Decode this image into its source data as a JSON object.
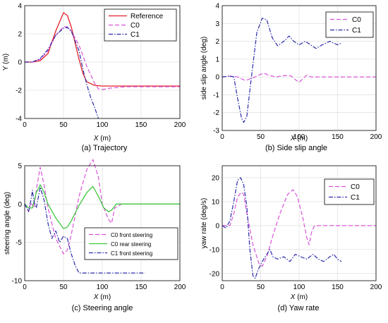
{
  "colors": {
    "reference": "#e0202a",
    "c0": "#d855d8",
    "c1": "#2a2aa8",
    "c0_rear": "#3ec83e"
  },
  "chart_data": [
    {
      "type": "line",
      "caption": "(a) Trajectory",
      "xlabel": "X",
      "xunit": "(m)",
      "ylabel": "Y (m)",
      "xlim": [
        0,
        200
      ],
      "ylim": [
        -4,
        4
      ],
      "xticks": [
        "0",
        "50",
        "100",
        "150",
        "200"
      ],
      "yticks": [
        "-4",
        "-2",
        "0",
        "2",
        "4"
      ],
      "legend_position": "top-right",
      "series": [
        {
          "name": "Reference",
          "points": [
            [
              0,
              0
            ],
            [
              10,
              0
            ],
            [
              20,
              0.1
            ],
            [
              30,
              0.6
            ],
            [
              40,
              2.2
            ],
            [
              50,
              3.5
            ],
            [
              55,
              3.3
            ],
            [
              60,
              2.5
            ],
            [
              70,
              0.2
            ],
            [
              75,
              -0.8
            ],
            [
              80,
              -1.4
            ],
            [
              90,
              -1.65
            ],
            [
              100,
              -1.7
            ],
            [
              150,
              -1.7
            ],
            [
              200,
              -1.7
            ]
          ]
        },
        {
          "name": "C0",
          "points": [
            [
              0,
              0
            ],
            [
              10,
              0
            ],
            [
              20,
              0.2
            ],
            [
              30,
              0.8
            ],
            [
              40,
              1.9
            ],
            [
              50,
              2.5
            ],
            [
              55,
              2.5
            ],
            [
              60,
              2.2
            ],
            [
              70,
              1.2
            ],
            [
              80,
              -0.3
            ],
            [
              90,
              -1.5
            ],
            [
              95,
              -1.9
            ],
            [
              100,
              -1.95
            ],
            [
              110,
              -1.85
            ],
            [
              130,
              -1.75
            ],
            [
              200,
              -1.75
            ]
          ]
        },
        {
          "name": "C1",
          "points": [
            [
              0,
              0
            ],
            [
              10,
              0
            ],
            [
              20,
              0.25
            ],
            [
              30,
              0.9
            ],
            [
              40,
              1.9
            ],
            [
              50,
              2.4
            ],
            [
              55,
              2.45
            ],
            [
              60,
              2.2
            ],
            [
              70,
              0.8
            ],
            [
              75,
              -0.5
            ],
            [
              80,
              -1.6
            ],
            [
              85,
              -2.5
            ],
            [
              90,
              -3.2
            ],
            [
              95,
              -4.0
            ]
          ]
        }
      ]
    },
    {
      "type": "line",
      "caption": "(b) Side slip angle",
      "xlabel": "X",
      "xunit": "(m)",
      "ylabel": "side slip angle (deg)",
      "xlim": [
        0,
        200
      ],
      "ylim": [
        -3,
        4
      ],
      "xticks": [
        "0",
        "50",
        "100",
        "150",
        "200"
      ],
      "yticks": [
        "-3",
        "-2",
        "-1",
        "0",
        "1",
        "2",
        "3",
        "4"
      ],
      "legend_position": "top-right",
      "series": [
        {
          "name": "C0",
          "points": [
            [
              0,
              0
            ],
            [
              10,
              0.05
            ],
            [
              20,
              0
            ],
            [
              25,
              -0.1
            ],
            [
              30,
              -0.2
            ],
            [
              40,
              -0.05
            ],
            [
              50,
              0.15
            ],
            [
              55,
              0.2
            ],
            [
              60,
              0.1
            ],
            [
              70,
              0
            ],
            [
              85,
              0.1
            ],
            [
              90,
              0.05
            ],
            [
              95,
              -0.15
            ],
            [
              100,
              -0.3
            ],
            [
              105,
              -0.1
            ],
            [
              110,
              0.1
            ],
            [
              115,
              0
            ],
            [
              130,
              0
            ],
            [
              200,
              0
            ]
          ]
        },
        {
          "name": "C1",
          "points": [
            [
              0,
              0
            ],
            [
              10,
              0.05
            ],
            [
              15,
              0
            ],
            [
              20,
              -1.2
            ],
            [
              25,
              -2.3
            ],
            [
              28,
              -2.55
            ],
            [
              32,
              -2.2
            ],
            [
              38,
              0
            ],
            [
              45,
              2.5
            ],
            [
              52,
              3.3
            ],
            [
              58,
              3.2
            ],
            [
              65,
              2.2
            ],
            [
              72,
              1.75
            ],
            [
              80,
              2.0
            ],
            [
              87,
              2.3
            ],
            [
              93,
              2.0
            ],
            [
              100,
              1.8
            ],
            [
              108,
              2.0
            ],
            [
              115,
              1.8
            ],
            [
              122,
              1.6
            ],
            [
              130,
              1.8
            ],
            [
              140,
              2.0
            ],
            [
              150,
              1.8
            ],
            [
              155,
              1.9
            ]
          ]
        }
      ]
    },
    {
      "type": "line",
      "caption": "(c) Steering angle",
      "xlabel": "X",
      "xunit": "(m)",
      "ylabel": "steering angle (deg)",
      "xlim": [
        0,
        200
      ],
      "ylim": [
        -10,
        5
      ],
      "xticks": [
        "0",
        "50",
        "100",
        "150",
        "200"
      ],
      "yticks": [
        "-10",
        "-5",
        "0",
        "5"
      ],
      "legend_position": "bottom-right",
      "series": [
        {
          "name": "C0 front steering",
          "points": [
            [
              0,
              0
            ],
            [
              5,
              -1
            ],
            [
              8,
              0.2
            ],
            [
              12,
              -0.5
            ],
            [
              16,
              2.5
            ],
            [
              20,
              4.8
            ],
            [
              25,
              2.5
            ],
            [
              30,
              -0.5
            ],
            [
              40,
              -4.5
            ],
            [
              50,
              -6.5
            ],
            [
              55,
              -6.0
            ],
            [
              60,
              -4.0
            ],
            [
              70,
              1.0
            ],
            [
              80,
              4.5
            ],
            [
              88,
              5.8
            ],
            [
              95,
              3.5
            ],
            [
              100,
              0
            ],
            [
              108,
              -2.0
            ],
            [
              112,
              -2.5
            ],
            [
              116,
              -0.5
            ],
            [
              125,
              0
            ],
            [
              200,
              0
            ]
          ]
        },
        {
          "name": "C0 rear steering",
          "points": [
            [
              0,
              0
            ],
            [
              5,
              -0.5
            ],
            [
              10,
              -0.5
            ],
            [
              15,
              1.5
            ],
            [
              20,
              2.5
            ],
            [
              25,
              1.5
            ],
            [
              30,
              0
            ],
            [
              40,
              -1.8
            ],
            [
              50,
              -3.2
            ],
            [
              55,
              -3.0
            ],
            [
              60,
              -2.2
            ],
            [
              70,
              -0.2
            ],
            [
              80,
              1.5
            ],
            [
              88,
              2.3
            ],
            [
              95,
              1.0
            ],
            [
              102,
              -0.5
            ],
            [
              108,
              -1.0
            ],
            [
              112,
              -0.8
            ],
            [
              118,
              0
            ],
            [
              200,
              0
            ]
          ]
        },
        {
          "name": "C1 front steering",
          "points": [
            [
              0,
              0
            ],
            [
              5,
              -1.0
            ],
            [
              8,
              0.5
            ],
            [
              10,
              1.8
            ],
            [
              12,
              0.3
            ],
            [
              15,
              -0.5
            ],
            [
              20,
              2.2
            ],
            [
              25,
              0.5
            ],
            [
              30,
              -2.5
            ],
            [
              35,
              -4.5
            ],
            [
              40,
              -3.5
            ],
            [
              45,
              -5.0
            ],
            [
              50,
              -4.2
            ],
            [
              55,
              -4.5
            ],
            [
              60,
              -6.5
            ],
            [
              65,
              -8.0
            ],
            [
              70,
              -9.0
            ],
            [
              80,
              -9.0
            ],
            [
              155,
              -9.0
            ]
          ]
        }
      ]
    },
    {
      "type": "line",
      "caption": "(d) Yaw rate",
      "xlabel": "X",
      "xunit": "(m)",
      "ylabel": "yaw rate (deg/s)",
      "xlim": [
        0,
        200
      ],
      "ylim": [
        -23,
        25
      ],
      "xticks": [
        "0",
        "50",
        "100",
        "150",
        "200"
      ],
      "yticks": [
        "-20",
        "-10",
        "0",
        "10",
        "20"
      ],
      "legend_position": "top-right",
      "series": [
        {
          "name": "C0",
          "points": [
            [
              0,
              0
            ],
            [
              5,
              0
            ],
            [
              10,
              0
            ],
            [
              15,
              5
            ],
            [
              20,
              12
            ],
            [
              25,
              14
            ],
            [
              28,
              13
            ],
            [
              32,
              5
            ],
            [
              40,
              -8
            ],
            [
              48,
              -16
            ],
            [
              52,
              -17
            ],
            [
              58,
              -13
            ],
            [
              65,
              -5
            ],
            [
              75,
              5
            ],
            [
              85,
              13
            ],
            [
              92,
              15
            ],
            [
              98,
              12
            ],
            [
              105,
              3
            ],
            [
              110,
              -5
            ],
            [
              113,
              -8
            ],
            [
              116,
              -3
            ],
            [
              120,
              0
            ],
            [
              200,
              0
            ]
          ]
        },
        {
          "name": "C1",
          "points": [
            [
              0,
              0
            ],
            [
              5,
              -1
            ],
            [
              10,
              2
            ],
            [
              15,
              10
            ],
            [
              20,
              19
            ],
            [
              24,
              20
            ],
            [
              28,
              17
            ],
            [
              32,
              8
            ],
            [
              36,
              -10
            ],
            [
              40,
              -21
            ],
            [
              43,
              -22
            ],
            [
              46,
              -19
            ],
            [
              52,
              -15
            ],
            [
              58,
              -12
            ],
            [
              62,
              -10
            ],
            [
              66,
              -13
            ],
            [
              72,
              -14
            ],
            [
              80,
              -13
            ],
            [
              88,
              -15
            ],
            [
              95,
              -12
            ],
            [
              102,
              -13
            ],
            [
              110,
              -14
            ],
            [
              118,
              -12
            ],
            [
              125,
              -14
            ],
            [
              132,
              -15
            ],
            [
              140,
              -13
            ],
            [
              145,
              -12
            ],
            [
              150,
              -14
            ],
            [
              155,
              -15
            ]
          ]
        }
      ]
    }
  ]
}
